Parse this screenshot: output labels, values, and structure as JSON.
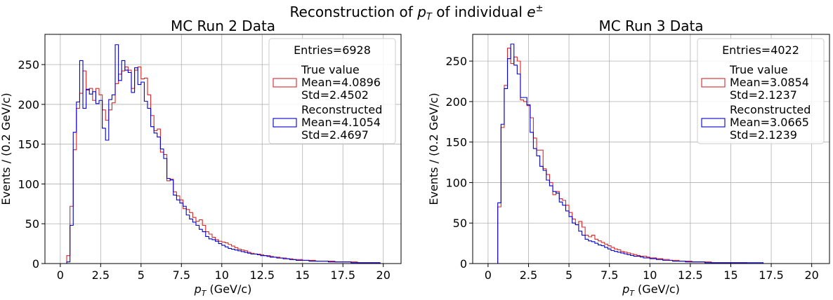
{
  "figure": {
    "title_prefix": "Reconstruction of ",
    "title_var": "p",
    "title_var_sub": "T",
    "title_mid": " of individual ",
    "title_particle": "e",
    "title_particle_sup": "±"
  },
  "chart_data": [
    {
      "type": "histogram",
      "title": "MC Run 2 Data",
      "xlabel_var": "p",
      "xlabel_sub": "T",
      "xlabel_unit": " (GeV/c)",
      "ylabel": "Events / (0.2 GeV/c)",
      "xlim": [
        -0.95,
        21.1
      ],
      "ylim": [
        0,
        288
      ],
      "xticks": [
        0,
        2.5,
        5,
        7.5,
        10,
        12.5,
        15,
        17.5,
        20
      ],
      "xtick_labels": [
        "0",
        "2.5",
        "5",
        "7.5",
        "10",
        "12.5",
        "15",
        "17.5",
        "20"
      ],
      "yticks": [
        0,
        50,
        100,
        150,
        200,
        250
      ],
      "ytick_labels": [
        "0",
        "50",
        "100",
        "150",
        "200",
        "250"
      ],
      "bin_width": 0.2,
      "bin_start": 0,
      "grid": true,
      "legend_position": "top-right",
      "legend_title": "Entries=6928",
      "series": [
        {
          "name": "True value",
          "stats": [
            "Mean=4.0896",
            "Std=2.4502"
          ],
          "color": "#d62728",
          "values": [
            0,
            0,
            10,
            72,
            143,
            195,
            214,
            242,
            218,
            220,
            205,
            220,
            212,
            193,
            180,
            193,
            202,
            226,
            238,
            242,
            247,
            243,
            220,
            243,
            247,
            232,
            233,
            212,
            186,
            167,
            169,
            140,
            137,
            104,
            106,
            90,
            85,
            80,
            69,
            68,
            64,
            58,
            53,
            55,
            48,
            40,
            37,
            33,
            30,
            28,
            27,
            26,
            24,
            22,
            20,
            18,
            17,
            16,
            14,
            13,
            12,
            12,
            11,
            10,
            10,
            9,
            8,
            8,
            7,
            7,
            6,
            6,
            5,
            5,
            5,
            4,
            4,
            4,
            4,
            3,
            3,
            3,
            3,
            3,
            3,
            2,
            2,
            2,
            2,
            2,
            2,
            2,
            1,
            1,
            1,
            1,
            1,
            1,
            1,
            0
          ]
        },
        {
          "name": "Reconstructed",
          "stats": [
            "Mean=4.1054",
            "Std=2.4697"
          ],
          "color": "#0000cc",
          "values": [
            0,
            0,
            2,
            48,
            165,
            203,
            255,
            195,
            219,
            213,
            216,
            201,
            205,
            170,
            155,
            206,
            212,
            275,
            230,
            255,
            243,
            240,
            215,
            246,
            225,
            228,
            204,
            195,
            172,
            164,
            159,
            144,
            132,
            107,
            105,
            86,
            80,
            76,
            72,
            61,
            56,
            52,
            48,
            43,
            40,
            34,
            31,
            30,
            28,
            25,
            23,
            21,
            19,
            18,
            17,
            16,
            15,
            14,
            13,
            12,
            12,
            11,
            10,
            10,
            9,
            8,
            8,
            7,
            7,
            6,
            6,
            5,
            5,
            4,
            4,
            4,
            4,
            3,
            3,
            3,
            3,
            3,
            3,
            2,
            2,
            2,
            2,
            2,
            2,
            2,
            1,
            1,
            1,
            1,
            1,
            1,
            1,
            1,
            1,
            0
          ]
        }
      ]
    },
    {
      "type": "histogram",
      "title": "MC Run 3 Data",
      "xlabel_var": "p",
      "xlabel_sub": "T",
      "xlabel_unit": " (GeV/c)",
      "ylabel": "Events / (0.2 GeV/c)",
      "xlim": [
        -0.95,
        21.1
      ],
      "ylim": [
        0,
        283
      ],
      "xticks": [
        0,
        2.5,
        5,
        7.5,
        10,
        12.5,
        15,
        17.5,
        20
      ],
      "xtick_labels": [
        "0",
        "2.5",
        "5",
        "7.5",
        "10",
        "12.5",
        "15",
        "17.5",
        "20"
      ],
      "yticks": [
        0,
        50,
        100,
        150,
        200,
        250
      ],
      "ytick_labels": [
        "0",
        "50",
        "100",
        "150",
        "200",
        "250"
      ],
      "bin_width": 0.2,
      "bin_start": 0,
      "grid": true,
      "legend_position": "top-right",
      "legend_title": "Entries=4022",
      "series": [
        {
          "name": "True value",
          "stats": [
            "Mean=3.0854",
            "Std=2.1237"
          ],
          "color": "#d62728",
          "values": [
            0,
            0,
            0,
            70,
            168,
            220,
            266,
            247,
            255,
            250,
            202,
            200,
            195,
            180,
            155,
            140,
            140,
            117,
            110,
            100,
            85,
            89,
            80,
            78,
            72,
            63,
            55,
            48,
            52,
            45,
            35,
            33,
            35,
            30,
            28,
            26,
            24,
            22,
            20,
            18,
            17,
            15,
            14,
            13,
            12,
            11,
            10,
            9,
            9,
            8,
            7,
            7,
            6,
            6,
            5,
            5,
            4,
            4,
            4,
            3,
            3,
            3,
            3,
            2,
            2,
            2,
            2,
            2,
            2,
            1,
            1,
            1,
            1,
            1,
            1,
            1,
            1,
            1,
            1,
            1,
            0,
            0,
            0,
            0,
            0,
            0,
            0,
            0,
            0,
            0,
            0,
            0,
            0,
            0,
            0,
            0,
            0,
            0,
            0,
            0
          ]
        },
        {
          "name": "Reconstructed",
          "stats": [
            "Mean=3.0665",
            "Std=2.1239"
          ],
          "color": "#0000cc",
          "values": [
            0,
            0,
            0,
            75,
            172,
            216,
            253,
            271,
            245,
            234,
            205,
            205,
            196,
            162,
            142,
            133,
            120,
            115,
            103,
            96,
            89,
            87,
            76,
            72,
            65,
            58,
            50,
            48,
            40,
            35,
            30,
            28,
            27,
            25,
            23,
            22,
            20,
            18,
            16,
            15,
            14,
            13,
            12,
            11,
            10,
            9,
            9,
            8,
            7,
            7,
            6,
            6,
            5,
            5,
            4,
            4,
            4,
            3,
            3,
            3,
            3,
            2,
            2,
            2,
            2,
            2,
            2,
            1,
            1,
            1,
            1,
            1,
            1,
            1,
            1,
            1,
            1,
            1,
            1,
            1,
            1,
            1,
            1,
            1,
            1,
            0,
            0,
            0,
            0,
            0,
            0,
            0,
            0,
            0,
            0,
            0,
            0,
            0,
            0,
            0
          ]
        }
      ]
    }
  ]
}
